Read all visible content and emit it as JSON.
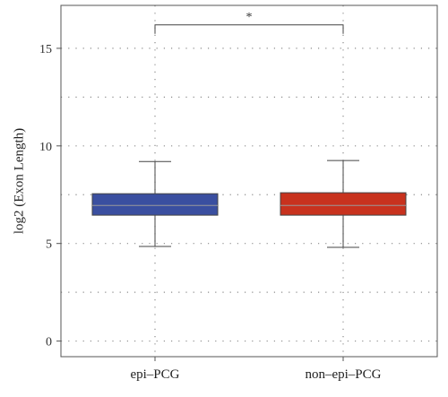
{
  "chart_data": {
    "type": "boxplot",
    "ylabel": "log2 (Exon Length)",
    "xlabel": "",
    "ylim": [
      -0.8,
      17.2
    ],
    "yticks": [
      0,
      5,
      10,
      15
    ],
    "grid": "dotted",
    "categories": [
      "epi–PCG",
      "non–epi–PCG"
    ],
    "boxes": [
      {
        "category": "epi–PCG",
        "whisker_low": 4.85,
        "q1": 6.45,
        "median": 6.95,
        "q3": 7.55,
        "whisker_high": 9.2,
        "color": "#3a4fa0"
      },
      {
        "category": "non–epi–PCG",
        "whisker_low": 4.8,
        "q1": 6.45,
        "median": 6.95,
        "q3": 7.6,
        "whisker_high": 9.25,
        "color": "#c8321e"
      }
    ],
    "significance": {
      "label": "*",
      "between": [
        0,
        1
      ],
      "y": 16.2
    }
  }
}
